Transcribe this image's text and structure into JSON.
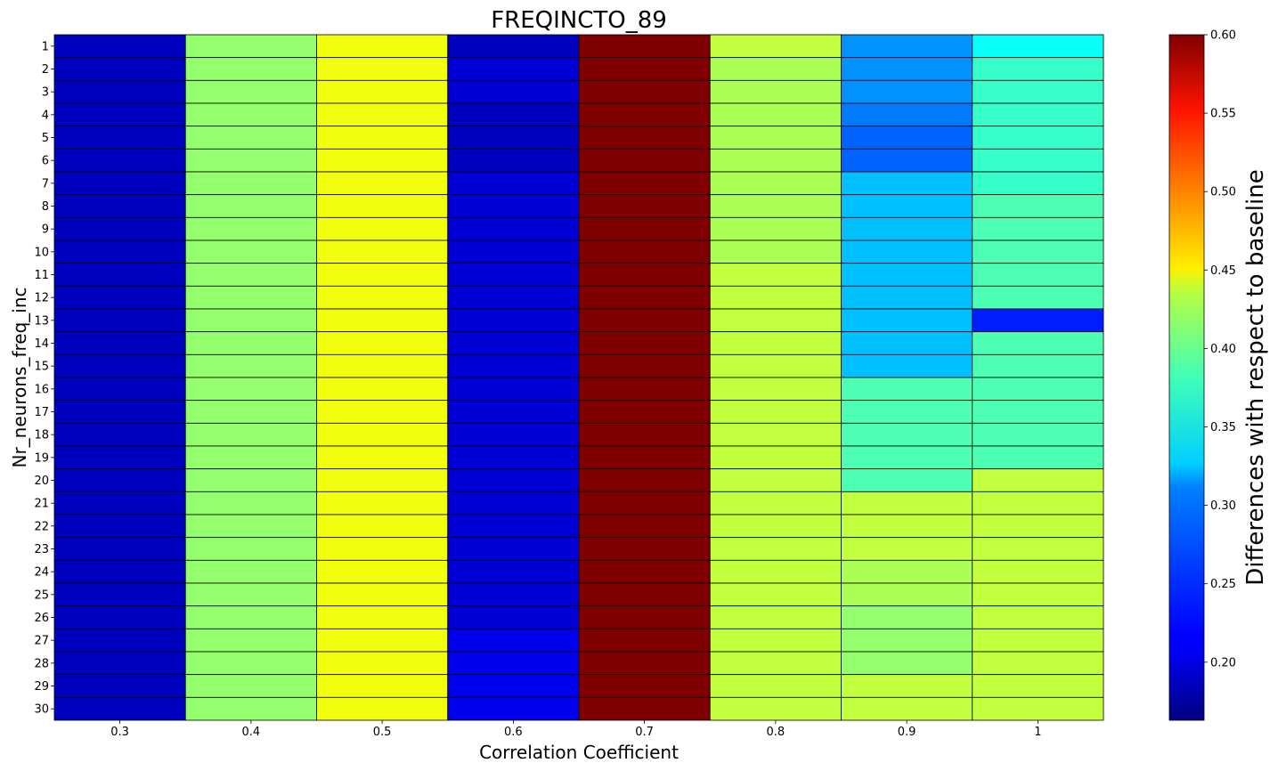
{
  "chart_data": {
    "type": "heatmap",
    "title": "FREQINCTO_89",
    "xlabel": "Correlation Coefficient",
    "ylabel": "Nr_neurons_freq_inc",
    "x_categories": [
      "0.3",
      "0.4",
      "0.5",
      "0.6",
      "0.7",
      "0.8",
      "0.9",
      "1"
    ],
    "y_categories": [
      "1",
      "2",
      "3",
      "4",
      "5",
      "6",
      "7",
      "8",
      "9",
      "10",
      "11",
      "12",
      "13",
      "14",
      "15",
      "16",
      "17",
      "18",
      "19",
      "20",
      "21",
      "22",
      "23",
      "24",
      "25",
      "26",
      "27",
      "28",
      "29",
      "30"
    ],
    "values": [
      [
        0.19,
        0.39,
        0.43,
        0.19,
        0.6,
        0.41,
        0.28,
        0.33
      ],
      [
        0.19,
        0.39,
        0.43,
        0.2,
        0.6,
        0.4,
        0.28,
        0.35
      ],
      [
        0.19,
        0.39,
        0.43,
        0.2,
        0.6,
        0.4,
        0.28,
        0.35
      ],
      [
        0.19,
        0.39,
        0.43,
        0.19,
        0.6,
        0.4,
        0.27,
        0.35
      ],
      [
        0.19,
        0.39,
        0.43,
        0.19,
        0.6,
        0.4,
        0.26,
        0.35
      ],
      [
        0.19,
        0.39,
        0.43,
        0.19,
        0.6,
        0.4,
        0.26,
        0.35
      ],
      [
        0.19,
        0.39,
        0.43,
        0.2,
        0.6,
        0.4,
        0.3,
        0.35
      ],
      [
        0.19,
        0.39,
        0.43,
        0.2,
        0.6,
        0.4,
        0.3,
        0.36
      ],
      [
        0.19,
        0.39,
        0.43,
        0.2,
        0.6,
        0.4,
        0.3,
        0.36
      ],
      [
        0.19,
        0.39,
        0.43,
        0.2,
        0.6,
        0.4,
        0.3,
        0.36
      ],
      [
        0.19,
        0.39,
        0.43,
        0.2,
        0.6,
        0.41,
        0.3,
        0.36
      ],
      [
        0.19,
        0.39,
        0.43,
        0.2,
        0.6,
        0.41,
        0.3,
        0.36
      ],
      [
        0.19,
        0.39,
        0.43,
        0.2,
        0.6,
        0.41,
        0.3,
        0.23
      ],
      [
        0.19,
        0.39,
        0.43,
        0.2,
        0.6,
        0.41,
        0.3,
        0.36
      ],
      [
        0.19,
        0.39,
        0.43,
        0.2,
        0.6,
        0.41,
        0.3,
        0.36
      ],
      [
        0.19,
        0.39,
        0.43,
        0.2,
        0.6,
        0.41,
        0.36,
        0.36
      ],
      [
        0.19,
        0.39,
        0.43,
        0.2,
        0.6,
        0.41,
        0.36,
        0.36
      ],
      [
        0.19,
        0.39,
        0.43,
        0.2,
        0.6,
        0.41,
        0.36,
        0.36
      ],
      [
        0.19,
        0.39,
        0.43,
        0.2,
        0.6,
        0.41,
        0.36,
        0.36
      ],
      [
        0.19,
        0.39,
        0.43,
        0.2,
        0.6,
        0.41,
        0.36,
        0.41
      ],
      [
        0.19,
        0.39,
        0.43,
        0.2,
        0.6,
        0.41,
        0.41,
        0.41
      ],
      [
        0.19,
        0.39,
        0.43,
        0.2,
        0.6,
        0.41,
        0.41,
        0.41
      ],
      [
        0.19,
        0.39,
        0.43,
        0.2,
        0.6,
        0.41,
        0.41,
        0.41
      ],
      [
        0.19,
        0.39,
        0.43,
        0.2,
        0.6,
        0.41,
        0.4,
        0.41
      ],
      [
        0.19,
        0.39,
        0.43,
        0.2,
        0.6,
        0.41,
        0.4,
        0.41
      ],
      [
        0.19,
        0.39,
        0.43,
        0.2,
        0.6,
        0.41,
        0.39,
        0.41
      ],
      [
        0.19,
        0.39,
        0.43,
        0.21,
        0.6,
        0.41,
        0.39,
        0.41
      ],
      [
        0.19,
        0.39,
        0.43,
        0.21,
        0.6,
        0.41,
        0.39,
        0.41
      ],
      [
        0.19,
        0.39,
        0.43,
        0.21,
        0.6,
        0.41,
        0.41,
        0.41
      ],
      [
        0.19,
        0.39,
        0.43,
        0.21,
        0.6,
        0.41,
        0.41,
        0.41
      ]
    ],
    "colormap": "jet",
    "colorbar": {
      "label": "Differences with respect to baseline",
      "vmin": 0.163,
      "vmax": 0.6,
      "ticks": [
        "0.20",
        "0.25",
        "0.30",
        "0.35",
        "0.40",
        "0.45",
        "0.50",
        "0.55",
        "0.60"
      ]
    },
    "cell_edge_color": "#000000",
    "legend": "none"
  }
}
